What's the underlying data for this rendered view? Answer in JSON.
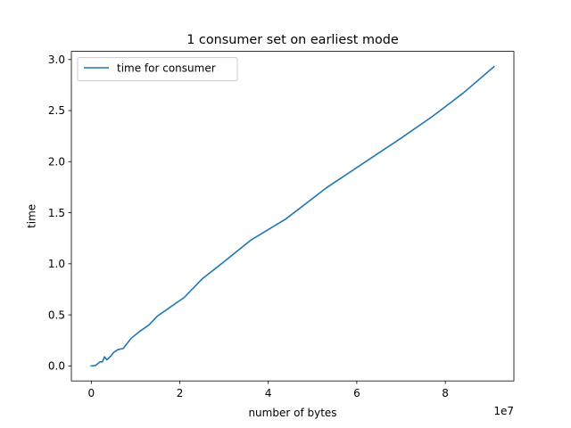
{
  "chart_data": {
    "type": "line",
    "title": "1 consumer set on earliest mode",
    "xlabel": "number of bytes",
    "ylabel": "time",
    "x_offset_label": "1e7",
    "xlim": [
      -0.45,
      9.55
    ],
    "ylim": [
      -0.147,
      3.08
    ],
    "x_ticks": [
      0,
      2,
      4,
      6,
      8
    ],
    "x_tick_labels": [
      "0",
      "2",
      "4",
      "6",
      "8"
    ],
    "y_ticks": [
      0.0,
      0.5,
      1.0,
      1.5,
      2.0,
      2.5,
      3.0
    ],
    "y_tick_labels": [
      "0.0",
      "0.5",
      "1.0",
      "1.5",
      "2.0",
      "2.5",
      "3.0"
    ],
    "grid": false,
    "legend_position": "top-left",
    "series": [
      {
        "name": "time for consumer",
        "color": "#1f77b4",
        "x": [
          0.0,
          0.1,
          0.2,
          0.25,
          0.3,
          0.35,
          0.45,
          0.5,
          0.6,
          0.72,
          0.9,
          1.1,
          1.3,
          1.5,
          1.8,
          2.1,
          2.5,
          3.0,
          3.6,
          4.4,
          5.3,
          6.2,
          7.0,
          7.7,
          8.4,
          9.1
        ],
        "y": [
          0.0,
          0.005,
          0.04,
          0.04,
          0.09,
          0.06,
          0.1,
          0.13,
          0.16,
          0.17,
          0.27,
          0.34,
          0.4,
          0.49,
          0.58,
          0.67,
          0.85,
          1.02,
          1.23,
          1.44,
          1.74,
          2.0,
          2.23,
          2.44,
          2.67,
          2.93
        ]
      }
    ]
  }
}
